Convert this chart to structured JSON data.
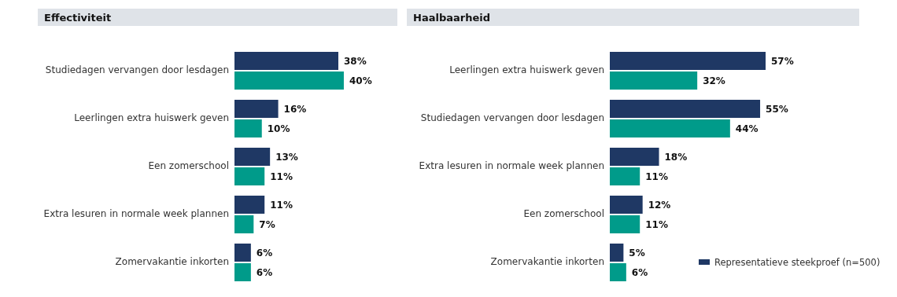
{
  "chart_data": [
    {
      "type": "bar",
      "orientation": "horizontal",
      "title": "Effectiviteit",
      "categories": [
        "Studiedagen vervangen door lesdagen",
        "Leerlingen extra huiswerk geven",
        "Een zomerschool",
        "Extra lesuren in normale week plannen",
        "Zomervakantie inkorten"
      ],
      "series": [
        {
          "color": "#1f3864",
          "values": [
            38,
            16,
            13,
            11,
            6
          ],
          "value_labels": [
            "38%",
            "16%",
            "13%",
            "11%",
            "6%"
          ]
        },
        {
          "color": "#009b8a",
          "values": [
            40,
            10,
            11,
            7,
            6
          ],
          "value_labels": [
            "40%",
            "10%",
            "11%",
            "7%",
            "6%"
          ]
        }
      ]
    },
    {
      "type": "bar",
      "orientation": "horizontal",
      "title": "Haalbaarheid",
      "categories": [
        "Leerlingen extra huiswerk geven",
        "Studiedagen vervangen door lesdagen",
        "Extra lesuren in normale week plannen",
        "Een zomerschool",
        "Zomervakantie inkorten"
      ],
      "series": [
        {
          "name": "Representatieve steekproef (n=500)",
          "color": "#1f3864",
          "values": [
            57,
            55,
            18,
            12,
            5
          ],
          "value_labels": [
            "57%",
            "55%",
            "18%",
            "12%",
            "5%"
          ]
        },
        {
          "color": "#009b8a",
          "values": [
            32,
            44,
            11,
            11,
            6
          ],
          "value_labels": [
            "32%",
            "44%",
            "11%",
            "11%",
            "6%"
          ]
        }
      ],
      "legend": "bottom right"
    }
  ]
}
